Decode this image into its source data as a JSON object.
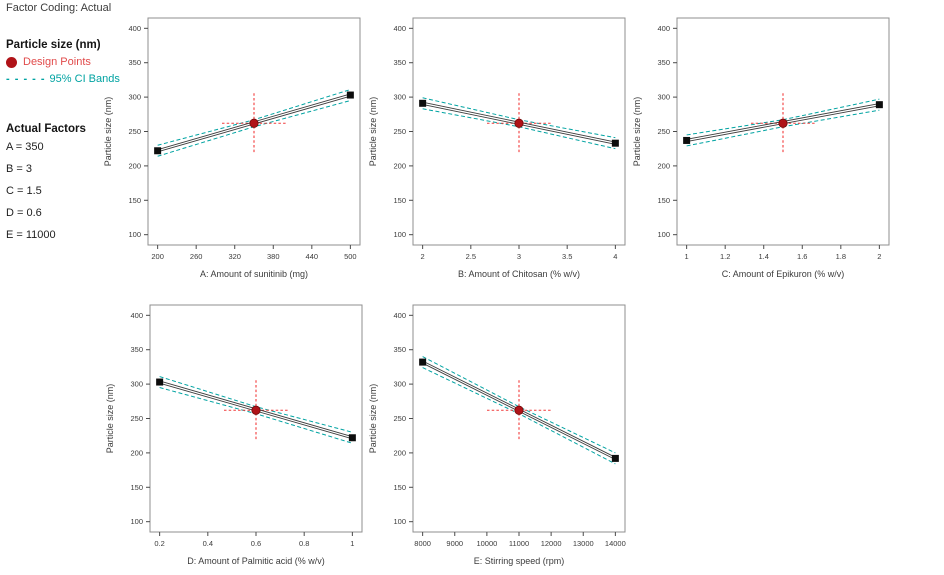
{
  "header": {
    "factor_coding": "Factor Coding: Actual"
  },
  "legend": {
    "response_title": "Particle size (nm)",
    "design_points_label": "Design Points",
    "ci_bands_label": "95% CI Bands",
    "ci_dashes": "- - - - -",
    "actual_factors_title": "Actual Factors",
    "factors": [
      "A = 350",
      "B = 3",
      "C = 1.5",
      "D = 0.6",
      "E = 11000"
    ]
  },
  "colors": {
    "design_point_fill": "#b01318",
    "design_point_edge": "#6f0a0a",
    "design_point_text": "#e14b4b",
    "ci_band": "#00a3a2",
    "crosshair": "#f13b3b",
    "mean_line": "#3d3d3d",
    "endpoint_marker": "#0d0d0d",
    "axis_box": "#8f8f8f",
    "tick": "#4a4a4a",
    "label_text": "#3b3b3b"
  },
  "chart_data": [
    {
      "type": "line",
      "title": "",
      "xlabel": "A: Amount of sunitinib (mg)",
      "ylabel": "Particle size (nm)",
      "x": [
        200,
        500
      ],
      "y": [
        222,
        303
      ],
      "center_point": {
        "x": 350,
        "y": 262
      },
      "xticks": [
        200,
        260,
        320,
        380,
        440,
        500
      ],
      "xtick_labels": [
        "200",
        "260",
        "320",
        "380",
        "440",
        "500"
      ],
      "yticks": [
        100,
        150,
        200,
        250,
        300,
        350,
        400
      ],
      "ytick_labels": [
        "100",
        "150",
        "200",
        "250",
        "300",
        "350",
        "400"
      ],
      "ylim": [
        85,
        415
      ],
      "grid": false,
      "legend_position": "none",
      "series_notes": "mean prediction line with dashed 95% CI bands; black squares at factor extremes; red design point at center"
    },
    {
      "type": "line",
      "title": "",
      "xlabel": "B: Amount of Chitosan (% w/v)",
      "ylabel": "Particle size (nm)",
      "x": [
        2,
        4
      ],
      "y": [
        291,
        233
      ],
      "center_point": {
        "x": 3,
        "y": 262
      },
      "xticks": [
        2,
        2.5,
        3,
        3.5,
        4
      ],
      "xtick_labels": [
        "2",
        "2.5",
        "3",
        "3.5",
        "4"
      ],
      "yticks": [
        100,
        150,
        200,
        250,
        300,
        350,
        400
      ],
      "ytick_labels": [
        "100",
        "150",
        "200",
        "250",
        "300",
        "350",
        "400"
      ],
      "ylim": [
        85,
        415
      ],
      "grid": false,
      "legend_position": "none"
    },
    {
      "type": "line",
      "title": "",
      "xlabel": "C: Amount of Epikuron  (% w/v)",
      "ylabel": "Particle size (nm)",
      "x": [
        1,
        2
      ],
      "y": [
        237,
        289
      ],
      "center_point": {
        "x": 1.5,
        "y": 262
      },
      "xticks": [
        1,
        1.2,
        1.4,
        1.6,
        1.8,
        2
      ],
      "xtick_labels": [
        "1",
        "1.2",
        "1.4",
        "1.6",
        "1.8",
        "2"
      ],
      "yticks": [
        100,
        150,
        200,
        250,
        300,
        350,
        400
      ],
      "ytick_labels": [
        "100",
        "150",
        "200",
        "250",
        "300",
        "350",
        "400"
      ],
      "ylim": [
        85,
        415
      ],
      "grid": false,
      "legend_position": "none"
    },
    {
      "type": "line",
      "title": "",
      "xlabel": "D: Amount of Palmitic acid (% w/v)",
      "ylabel": "Particle size (nm)",
      "x": [
        0.2,
        1
      ],
      "y": [
        303,
        222
      ],
      "center_point": {
        "x": 0.6,
        "y": 262
      },
      "xticks": [
        0.2,
        0.4,
        0.6,
        0.8,
        1
      ],
      "xtick_labels": [
        "0.2",
        "0.4",
        "0.6",
        "0.8",
        "1"
      ],
      "yticks": [
        100,
        150,
        200,
        250,
        300,
        350,
        400
      ],
      "ytick_labels": [
        "100",
        "150",
        "200",
        "250",
        "300",
        "350",
        "400"
      ],
      "ylim": [
        85,
        415
      ],
      "grid": false,
      "legend_position": "none"
    },
    {
      "type": "line",
      "title": "",
      "xlabel": "E: Stirring speed (rpm)",
      "ylabel": "Particle size (nm)",
      "x": [
        8000,
        14000
      ],
      "y": [
        332,
        192
      ],
      "center_point": {
        "x": 11000,
        "y": 262
      },
      "xticks": [
        8000,
        9000,
        10000,
        11000,
        12000,
        13000,
        14000
      ],
      "xtick_labels": [
        "8000",
        "9000",
        "10000",
        "11000",
        "12000",
        "13000",
        "14000"
      ],
      "yticks": [
        100,
        150,
        200,
        250,
        300,
        350,
        400
      ],
      "ytick_labels": [
        "100",
        "150",
        "200",
        "250",
        "300",
        "350",
        "400"
      ],
      "ylim": [
        85,
        415
      ],
      "grid": false,
      "legend_position": "none"
    }
  ]
}
